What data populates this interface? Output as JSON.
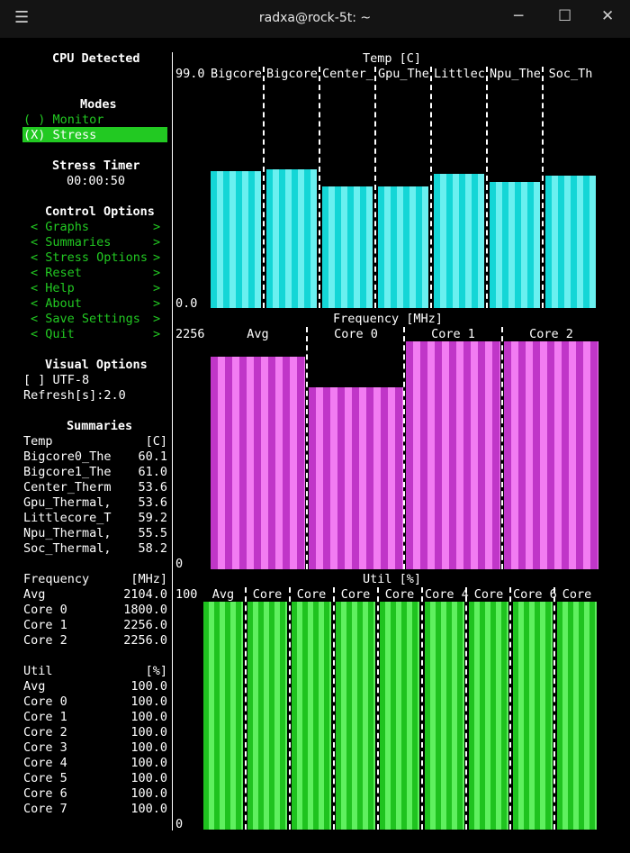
{
  "window": {
    "title": "radxa@rock-5t: ~",
    "menu_icon": "hamburger-icon",
    "buttons": [
      "minimize-icon",
      "maximize-icon",
      "close-icon"
    ]
  },
  "sidebar": {
    "cpu_detected": "CPU Detected",
    "modes_title": "Modes",
    "modes": [
      {
        "label": "( ) Monitor",
        "selected": false
      },
      {
        "label": "(X) Stress",
        "selected": true
      }
    ],
    "stress_timer_title": "Stress Timer",
    "stress_timer": "00:00:50",
    "control_title": "Control Options",
    "controls": [
      {
        "label": "Graphs"
      },
      {
        "label": "Summaries"
      },
      {
        "label": "Stress Options"
      },
      {
        "label": "Reset"
      },
      {
        "label": "Help"
      },
      {
        "label": "About"
      },
      {
        "label": "Save Settings"
      },
      {
        "label": "Quit"
      }
    ],
    "visual_title": "Visual Options",
    "utf8": "[ ] UTF-8",
    "refresh": "Refresh[s]:2.0",
    "summaries_title": "Summaries",
    "temp": {
      "header": "Temp",
      "unit": "[C]",
      "rows": [
        {
          "name": "Bigcore0_The",
          "value": "60.1"
        },
        {
          "name": "Bigcore1_The",
          "value": "61.0"
        },
        {
          "name": "Center_Therm",
          "value": "53.6"
        },
        {
          "name": "Gpu_Thermal,",
          "value": "53.6"
        },
        {
          "name": "Littlecore_T",
          "value": "59.2"
        },
        {
          "name": "Npu_Thermal,",
          "value": "55.5"
        },
        {
          "name": "Soc_Thermal,",
          "value": "58.2"
        }
      ]
    },
    "freq": {
      "header": "Frequency",
      "unit": "[MHz]",
      "rows": [
        {
          "name": "Avg",
          "value": "2104.0"
        },
        {
          "name": "Core 0",
          "value": "1800.0"
        },
        {
          "name": "Core 1",
          "value": "2256.0"
        },
        {
          "name": "Core 2",
          "value": "2256.0"
        }
      ]
    },
    "util": {
      "header": "Util",
      "unit": "[%]",
      "rows": [
        {
          "name": "Avg",
          "value": "100.0"
        },
        {
          "name": "Core 0",
          "value": "100.0"
        },
        {
          "name": "Core 1",
          "value": "100.0"
        },
        {
          "name": "Core 2",
          "value": "100.0"
        },
        {
          "name": "Core 3",
          "value": "100.0"
        },
        {
          "name": "Core 4",
          "value": "100.0"
        },
        {
          "name": "Core 5",
          "value": "100.0"
        },
        {
          "name": "Core 6",
          "value": "100.0"
        },
        {
          "name": "Core 7",
          "value": "100.0"
        }
      ]
    }
  },
  "graphs": {
    "temp": {
      "title": "Temp [C]",
      "max_label": "99.0",
      "min_label": "0.0",
      "max": 99.0,
      "labels": [
        "Bigcore",
        "Bigcore",
        "Center_",
        "Gpu_The",
        "Littlec",
        "Npu_The",
        "Soc_Th"
      ],
      "values": [
        60.1,
        61.0,
        53.6,
        53.6,
        59.2,
        55.5,
        58.2
      ]
    },
    "freq": {
      "title": "Frequency [MHz]",
      "max_label": "2256",
      "min_label": "0",
      "max": 2256,
      "labels": [
        "Avg",
        "Core 0",
        "Core 1",
        "Core 2"
      ],
      "values": [
        2104.0,
        1800.0,
        2256.0,
        2256.0
      ]
    },
    "util": {
      "title": "Util [%]",
      "max_label": "100",
      "min_label": "0",
      "max": 100,
      "labels": [
        "Avg",
        "Core",
        "Core",
        "Core",
        "Core",
        "Core 4",
        "Core",
        "Core 6",
        "Core"
      ],
      "values": [
        100,
        100,
        100,
        100,
        100,
        100,
        100,
        100,
        100
      ]
    }
  },
  "colors": {
    "accent": "#22c922",
    "temp_bars": "#14d6d6",
    "freq_bars": "#c036c8",
    "util_bars": "#1fc31f",
    "background": "#000000"
  }
}
